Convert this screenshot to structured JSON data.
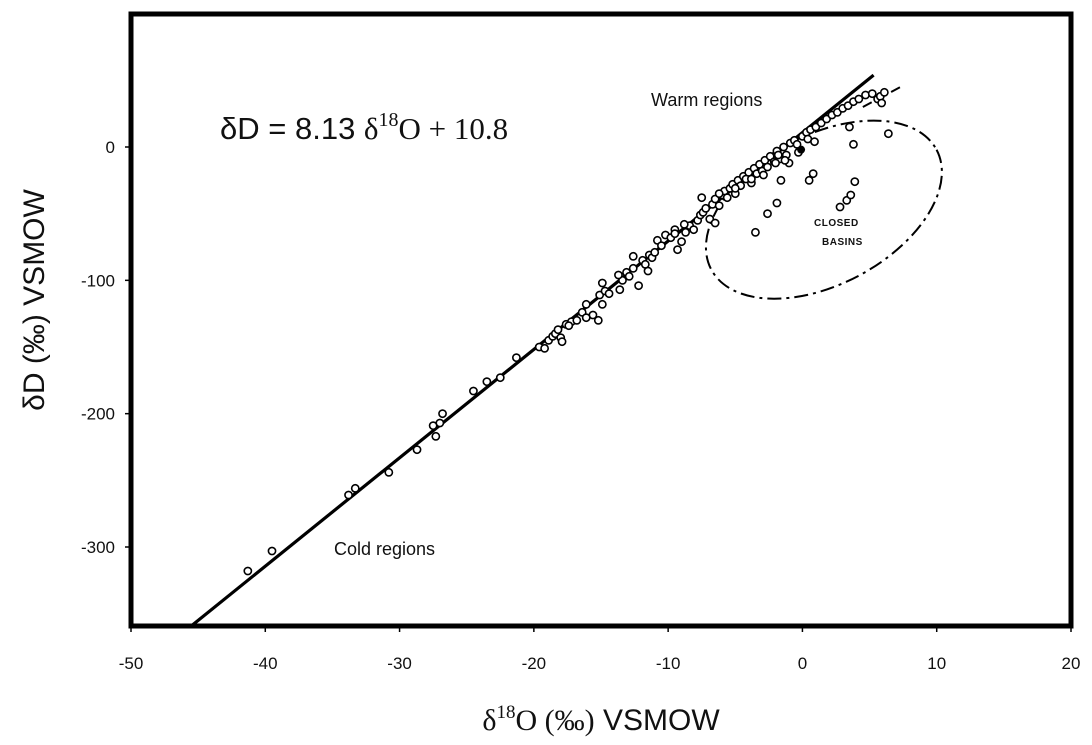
{
  "chart_data": {
    "type": "scatter",
    "title": "",
    "xlabel": {
      "main": "δ",
      "sup": "18",
      "rest_serif": "O (‰)",
      "rest_sans": " VSMOW"
    },
    "ylabel": "δD (‰) VSMOW",
    "xlim": [
      -50,
      20
    ],
    "ylim": [
      -360,
      90
    ],
    "x_ticks": [
      -50,
      -40,
      -30,
      -20,
      -10,
      0,
      10,
      20
    ],
    "x_tick_labels": [
      "-50",
      "-40",
      "-30",
      "-20",
      "-10",
      "0",
      "10",
      "20"
    ],
    "y_ticks": [
      0,
      -100,
      -200,
      -300
    ],
    "y_tick_labels": [
      "0",
      "-100",
      "-200",
      "-300"
    ],
    "grid": false,
    "equation": {
      "lhs": "δD = 8.13 ",
      "delta": "δ",
      "sup": "18",
      "rhs": "O + 10.8"
    },
    "annotations": {
      "warm": "Warm regions",
      "cold": "Cold regions",
      "closed": "CLOSED",
      "basins": "BASINS"
    },
    "regression_line": {
      "slope": 8.13,
      "intercept": 10.8,
      "x_range": [
        -46.2,
        5.3
      ]
    },
    "dashed_extension": {
      "points": [
        [
          4.5,
          30
        ],
        [
          7.3,
          45
        ]
      ]
    },
    "closed_basin_ellipse": {
      "center": [
        1.6,
        -47
      ],
      "rx": 9.5,
      "ry": 56,
      "rotation_deg": -28
    },
    "filled_point": [
      -0.1,
      -2
    ],
    "series": [
      {
        "points": [
          [
            -41.3,
            -318
          ],
          [
            -39.5,
            -303
          ],
          [
            -33.8,
            -261
          ],
          [
            -33.3,
            -256
          ],
          [
            -30.8,
            -244
          ],
          [
            -28.7,
            -227
          ],
          [
            -27.5,
            -209
          ],
          [
            -27.3,
            -217
          ],
          [
            -27.0,
            -207
          ],
          [
            -26.8,
            -200
          ],
          [
            -24.5,
            -183
          ],
          [
            -23.5,
            -176
          ],
          [
            -22.5,
            -173
          ],
          [
            -21.3,
            -158
          ],
          [
            -19.6,
            -150
          ],
          [
            -19.2,
            -151
          ],
          [
            -18.9,
            -145
          ],
          [
            -18.6,
            -142
          ],
          [
            -18.4,
            -140
          ],
          [
            -18.2,
            -137
          ],
          [
            -18.0,
            -143
          ],
          [
            -17.9,
            -146
          ],
          [
            -17.6,
            -133
          ],
          [
            -17.2,
            -131
          ],
          [
            -16.8,
            -130
          ],
          [
            -16.4,
            -124
          ],
          [
            -16.1,
            -118
          ],
          [
            -15.6,
            -126
          ],
          [
            -15.2,
            -130
          ],
          [
            -15.1,
            -111
          ],
          [
            -14.9,
            -102
          ],
          [
            -14.7,
            -108
          ],
          [
            -14.4,
            -110
          ],
          [
            -13.6,
            -107
          ],
          [
            -13.4,
            -100
          ],
          [
            -13.1,
            -94
          ],
          [
            -12.9,
            -97
          ],
          [
            -12.6,
            -91
          ],
          [
            -12.2,
            -104
          ],
          [
            -11.9,
            -85
          ],
          [
            -11.7,
            -88
          ],
          [
            -11.5,
            -93
          ],
          [
            -11.4,
            -81
          ],
          [
            -11.2,
            -83
          ],
          [
            -11.0,
            -79
          ],
          [
            -10.8,
            -70
          ],
          [
            -10.5,
            -74
          ],
          [
            -10.2,
            -66
          ],
          [
            -9.8,
            -68
          ],
          [
            -9.5,
            -62
          ],
          [
            -9.3,
            -77
          ],
          [
            -9.0,
            -71
          ],
          [
            -8.7,
            -64
          ],
          [
            -8.4,
            -59
          ],
          [
            -8.1,
            -62
          ],
          [
            -7.8,
            -55
          ],
          [
            -7.6,
            -51
          ],
          [
            -7.4,
            -49
          ],
          [
            -7.2,
            -46
          ],
          [
            -6.9,
            -54
          ],
          [
            -6.7,
            -43
          ],
          [
            -6.5,
            -39
          ],
          [
            -6.2,
            -44
          ],
          [
            -6.0,
            -36
          ],
          [
            -5.8,
            -33
          ],
          [
            -5.6,
            -38
          ],
          [
            -5.4,
            -31
          ],
          [
            -5.2,
            -28
          ],
          [
            -5.0,
            -35
          ],
          [
            -4.8,
            -25
          ],
          [
            -4.6,
            -29
          ],
          [
            -4.4,
            -22
          ],
          [
            -4.2,
            -24
          ],
          [
            -4.0,
            -19
          ],
          [
            -3.8,
            -27
          ],
          [
            -3.6,
            -16
          ],
          [
            -3.4,
            -20
          ],
          [
            -3.2,
            -13
          ],
          [
            -3.0,
            -18
          ],
          [
            -2.8,
            -10
          ],
          [
            -2.6,
            -15
          ],
          [
            -2.4,
            -7
          ],
          [
            -2.1,
            -11
          ],
          [
            -1.9,
            -3
          ],
          [
            -1.7,
            -9
          ],
          [
            -1.4,
            0
          ],
          [
            -1.2,
            -6
          ],
          [
            -0.9,
            3
          ],
          [
            -0.6,
            5
          ],
          [
            -0.4,
            2
          ],
          [
            0.0,
            8
          ],
          [
            0.3,
            11
          ],
          [
            0.6,
            13
          ],
          [
            1.0,
            15
          ],
          [
            1.4,
            18
          ],
          [
            1.8,
            21
          ],
          [
            2.2,
            24
          ],
          [
            2.6,
            26
          ],
          [
            3.0,
            29
          ],
          [
            3.4,
            31
          ],
          [
            3.8,
            34
          ],
          [
            4.2,
            36
          ],
          [
            4.7,
            39
          ],
          [
            5.2,
            40
          ],
          [
            5.6,
            36
          ],
          [
            5.8,
            38
          ],
          [
            6.1,
            41
          ],
          [
            -7.5,
            -38
          ],
          [
            -6.2,
            -35
          ],
          [
            -5.0,
            -31
          ],
          [
            -3.8,
            -24
          ],
          [
            -2.9,
            -21
          ],
          [
            -1.8,
            -6
          ],
          [
            -1.0,
            -12
          ],
          [
            -0.3,
            -4
          ],
          [
            0.4,
            6
          ],
          [
            0.9,
            4
          ],
          [
            -9.5,
            -65
          ],
          [
            -8.8,
            -58
          ],
          [
            -12.6,
            -82
          ],
          [
            -13.7,
            -96
          ],
          [
            -17.4,
            -134
          ],
          [
            -16.1,
            -128
          ],
          [
            -14.9,
            -118
          ],
          [
            -6.5,
            -57
          ]
        ]
      },
      {
        "name": "closed basins",
        "points": [
          [
            -1.3,
            -10
          ],
          [
            -2.0,
            -12
          ],
          [
            -1.6,
            -25
          ],
          [
            -1.9,
            -42
          ],
          [
            -2.6,
            -50
          ],
          [
            -3.5,
            -64
          ],
          [
            0.5,
            -25
          ],
          [
            0.8,
            -20
          ],
          [
            2.8,
            -45
          ],
          [
            3.3,
            -40
          ],
          [
            3.6,
            -36
          ],
          [
            3.9,
            -26
          ],
          [
            3.8,
            2
          ],
          [
            3.5,
            15
          ],
          [
            5.9,
            33
          ],
          [
            6.4,
            10
          ]
        ]
      }
    ]
  }
}
